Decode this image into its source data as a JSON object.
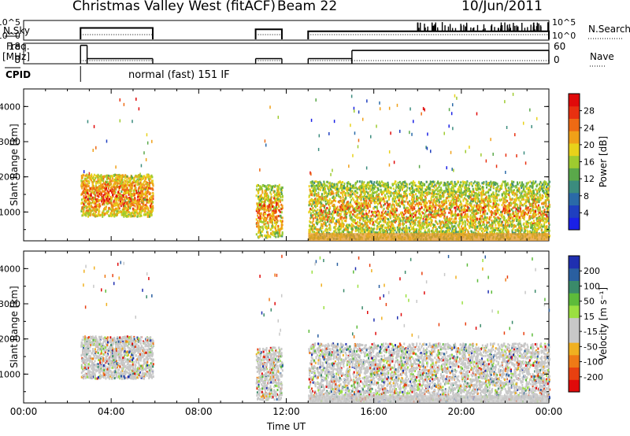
{
  "header": {
    "station": "Christmas Valley West (fitACF)",
    "beam": "Beam 22",
    "date": "10/Jun/2011"
  },
  "chart_data": [
    {
      "type": "line",
      "name_label": "N.Sky",
      "right_label": "N.Search",
      "left_ticks": [
        "10^5",
        "10^0"
      ],
      "right_ticks": [
        "10^5",
        "10^0"
      ],
      "x_hours": [
        2.6,
        5.9,
        10.6,
        11.8,
        13.0,
        24.0
      ],
      "segments": [
        {
          "start": 2.6,
          "end": 5.9,
          "level": 0.62
        },
        {
          "start": 10.6,
          "end": 11.8,
          "level": 0.55
        },
        {
          "start": 13.0,
          "end": 24.0,
          "level": 0.45
        }
      ]
    },
    {
      "type": "line",
      "freq_label": "Freq.",
      "freq_unit": "[MHz]",
      "nave_label": "Nave",
      "left_ticks": [
        18,
        8
      ],
      "right_ticks": [
        60,
        0
      ],
      "freq_steps": [
        {
          "start": 2.6,
          "end": 2.9,
          "value": 17
        },
        {
          "start": 2.9,
          "end": 5.9,
          "value": 10.5
        },
        {
          "start": 10.6,
          "end": 11.8,
          "value": 10.5
        },
        {
          "start": 13.0,
          "end": 15.0,
          "value": 10.5
        },
        {
          "start": 15.0,
          "end": 24.0,
          "value": 14.5
        }
      ]
    },
    {
      "type": "text",
      "cpid_label": "CPID",
      "program": "normal (fast) 151 IF",
      "start_hour": 2.6
    },
    {
      "type": "heatmap",
      "quantity": "Power",
      "ylabel": "Slant Range [km]",
      "ylim": [
        180,
        4500
      ],
      "y_ticks": [
        1000,
        2000,
        3000,
        4000
      ],
      "colorbar_label": "Power [dB]",
      "colorbar_ticks": [
        4,
        8,
        12,
        16,
        20,
        24,
        28
      ],
      "colorbar_colors": [
        "#1a20e6",
        "#1f3fc0",
        "#2a6aa8",
        "#3b8c7e",
        "#5aa84a",
        "#9ecb2f",
        "#e8d21a",
        "#f0a018",
        "#ee6a14",
        "#e83010",
        "#e00a0a"
      ],
      "blocks": [
        {
          "t0": 2.6,
          "t1": 5.9,
          "r0": 900,
          "r1": 2100,
          "level": 0.55
        },
        {
          "t0": 10.6,
          "t1": 11.8,
          "r0": 300,
          "r1": 1800,
          "level": 0.5
        },
        {
          "t0": 13.0,
          "t1": 24.0,
          "r0": 250,
          "r1": 1900,
          "level": 0.45
        }
      ]
    },
    {
      "type": "heatmap",
      "quantity": "Velocity",
      "xlabel": "Time UT",
      "ylabel": "Slant Range [km]",
      "ylim": [
        180,
        4500
      ],
      "y_ticks": [
        1000,
        2000,
        3000,
        4000
      ],
      "x_ticks": [
        "00:00",
        "04:00",
        "08:00",
        "12:00",
        "16:00",
        "20:00",
        "00:00"
      ],
      "colorbar_label": "Velocity [m s⁻¹]",
      "colorbar_ticks": [
        200,
        100,
        50,
        15,
        -15,
        -50,
        -100,
        -200
      ],
      "colorbar_colors": [
        "#1f2fb0",
        "#2a5fa0",
        "#3a8a6a",
        "#5dbb3a",
        "#9be040",
        "#c8c8c8",
        "#c8c8c8",
        "#f0b020",
        "#ef7a16",
        "#e84010",
        "#e00a0a"
      ],
      "blocks": [
        {
          "t0": 2.6,
          "t1": 5.9,
          "r0": 900,
          "r1": 2100,
          "level": 0.5
        },
        {
          "t0": 10.6,
          "t1": 11.8,
          "r0": 300,
          "r1": 1800,
          "level": 0.3
        },
        {
          "t0": 13.0,
          "t1": 24.0,
          "r0": 250,
          "r1": 1900,
          "level": 0.5
        }
      ]
    }
  ]
}
